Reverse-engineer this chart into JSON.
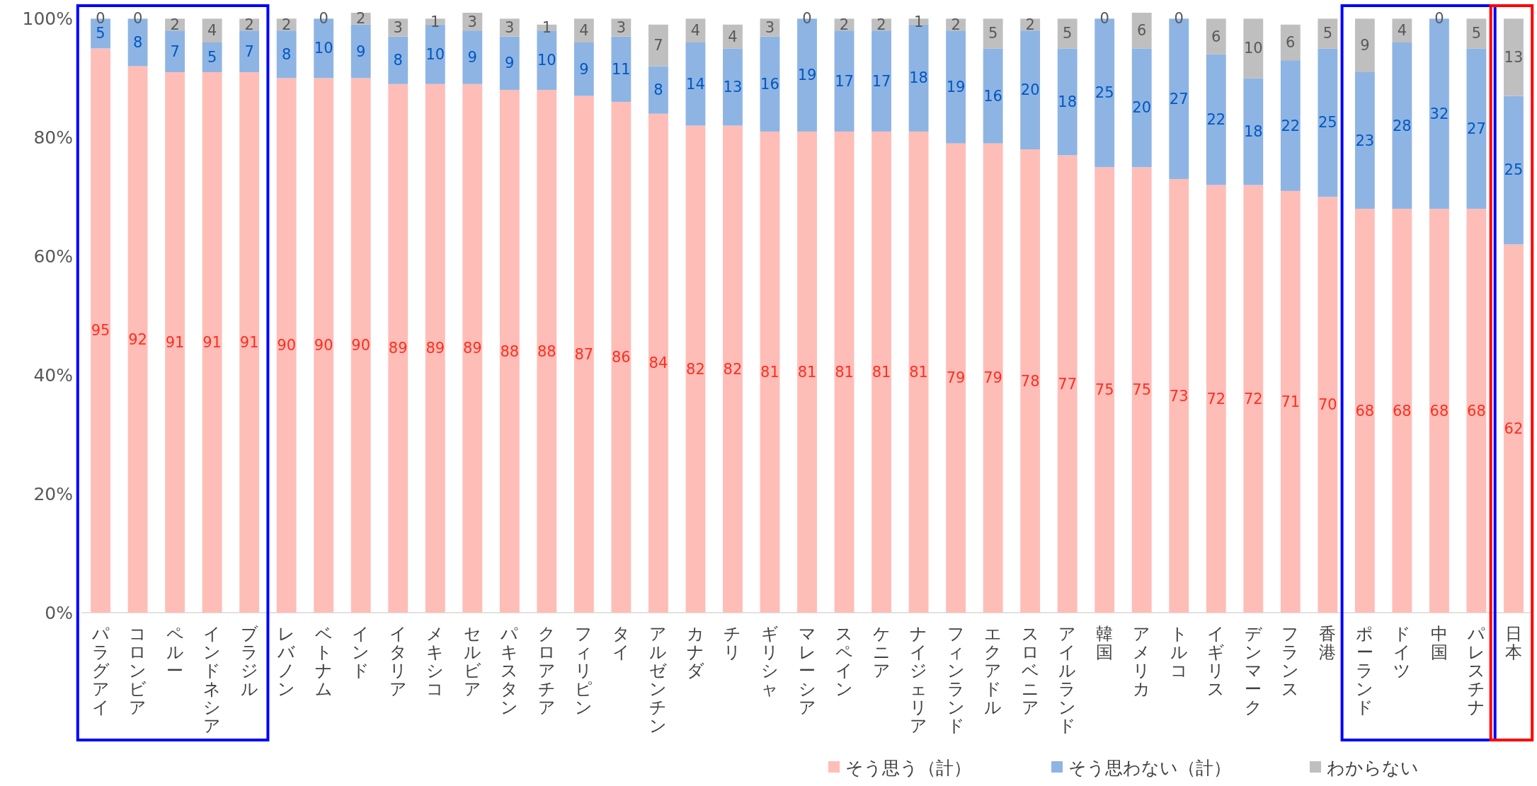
{
  "chart_data": {
    "type": "bar",
    "stacked": true,
    "data_labels": true,
    "legend": "bottom",
    "categories": [
      "パラグアイ",
      "コロンビア",
      "ペルー",
      "インドネシア",
      "ブラジル",
      "レバノン",
      "ベトナム",
      "インド",
      "イタリア",
      "メキシコ",
      "セルビア",
      "パキスタン",
      "クロアチア",
      "フィリピン",
      "タイ",
      "アルゼンチン",
      "カナダ",
      "チリ",
      "ギリシャ",
      "マレーシア",
      "スペイン",
      "ケニア",
      "ナイジェリア",
      "フィンランド",
      "エクアドル",
      "スロベニア",
      "アイルランド",
      "韓国",
      "アメリカ",
      "トルコ",
      "イギリス",
      "デンマーク",
      "フランス",
      "香港",
      "ポーランド",
      "ドイツ",
      "中国",
      "パレスチナ",
      "日本"
    ],
    "series": [
      {
        "name": "そう思う（計）",
        "color": "#ffbdb8",
        "values": [
          95,
          92,
          91,
          91,
          91,
          90,
          90,
          90,
          89,
          89,
          89,
          88,
          88,
          87,
          86,
          84,
          82,
          82,
          81,
          81,
          81,
          81,
          81,
          79,
          79,
          78,
          77,
          75,
          75,
          73,
          72,
          72,
          71,
          70,
          68,
          68,
          68,
          68,
          62
        ]
      },
      {
        "name": "そう思わない（計）",
        "color": "#8eb4e3",
        "values": [
          5,
          8,
          7,
          5,
          7,
          8,
          10,
          9,
          8,
          10,
          9,
          9,
          10,
          9,
          11,
          8,
          14,
          13,
          16,
          19,
          17,
          17,
          18,
          19,
          16,
          20,
          18,
          25,
          20,
          27,
          22,
          18,
          22,
          25,
          23,
          28,
          32,
          27,
          25
        ]
      },
      {
        "name": "わからない",
        "color": "#bfbfbf",
        "values": [
          0,
          0,
          2,
          4,
          2,
          2,
          0,
          2,
          3,
          1,
          3,
          3,
          1,
          4,
          3,
          7,
          4,
          4,
          3,
          0,
          2,
          2,
          1,
          2,
          5,
          2,
          5,
          0,
          6,
          0,
          6,
          10,
          6,
          5,
          9,
          4,
          0,
          5,
          13
        ]
      }
    ],
    "ylim": [
      0,
      101
    ],
    "yticks": [
      {
        "value": 0,
        "label": "0%"
      },
      {
        "value": 20,
        "label": "20%"
      },
      {
        "value": 40,
        "label": "40%"
      },
      {
        "value": 60,
        "label": "60%"
      },
      {
        "value": 80,
        "label": "80%"
      },
      {
        "value": 100,
        "label": "100%"
      }
    ]
  }
}
